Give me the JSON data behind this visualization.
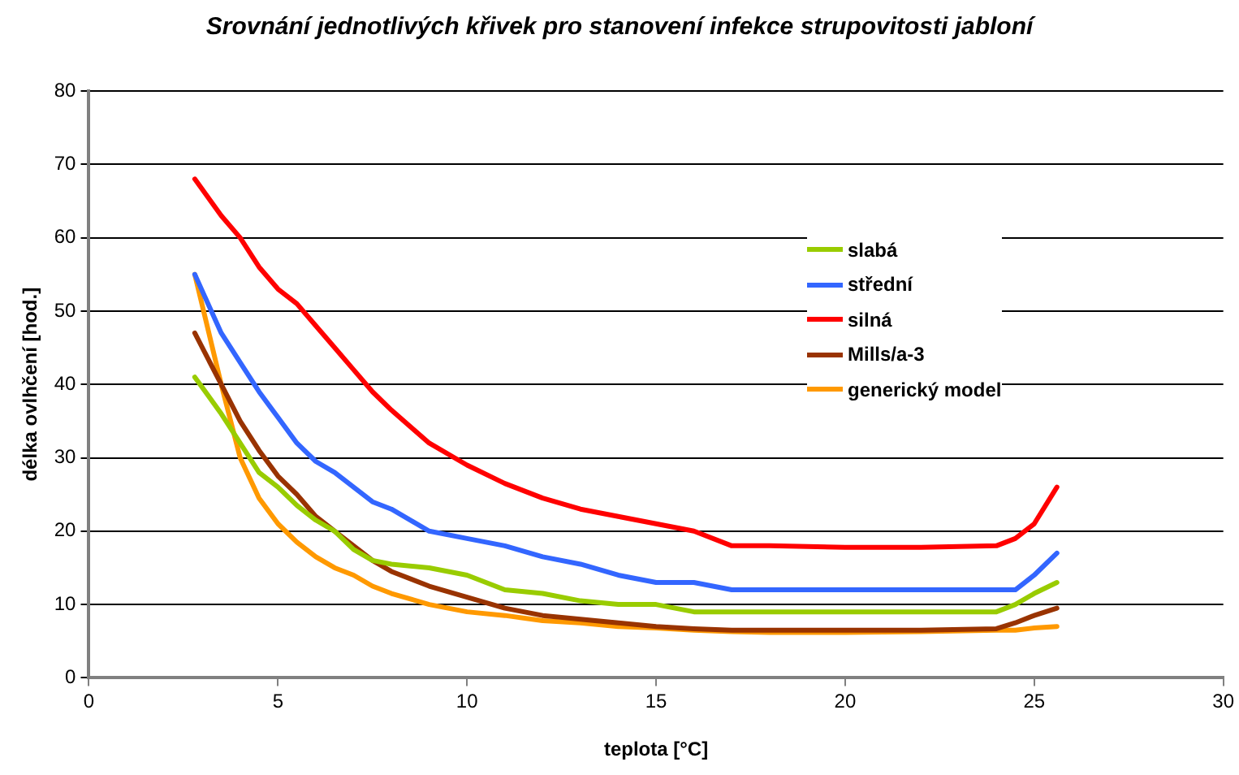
{
  "chart_data": {
    "type": "line",
    "title": "Srovnání jednotlivých křivek pro stanovení infekce strupovitosti jabloní",
    "xlabel": "teplota [°C]",
    "ylabel": "délka ovlhčení [hod.]",
    "x": [
      2.8,
      3.5,
      4,
      4.5,
      5,
      5.5,
      6,
      6.5,
      7,
      7.5,
      8,
      9,
      10,
      11,
      12,
      13,
      14,
      15,
      16,
      17,
      18,
      20,
      22,
      24,
      24.5,
      25,
      25.6
    ],
    "xlim": [
      0,
      30
    ],
    "xticks": [
      0,
      5,
      10,
      15,
      20,
      25,
      30
    ],
    "ylim": [
      0,
      80
    ],
    "yticks": [
      0,
      10,
      20,
      30,
      40,
      50,
      60,
      70,
      80
    ],
    "grid": "y",
    "legend": "right",
    "marker": "none",
    "line_style": "solid",
    "series": [
      {
        "name": "slabá",
        "color": "#99cc00",
        "values": [
          41,
          36,
          32,
          28,
          26,
          23.5,
          21.5,
          20,
          17.5,
          16,
          15.5,
          15,
          14,
          12,
          11.5,
          10.5,
          10,
          10,
          9,
          9,
          9,
          9,
          9,
          9,
          10,
          11.5,
          13
        ]
      },
      {
        "name": "střední",
        "color": "#3366ff",
        "values": [
          55,
          47,
          43,
          39,
          35.5,
          32,
          29.5,
          28,
          26,
          24,
          23,
          20,
          19,
          18,
          16.5,
          15.5,
          14,
          13,
          13,
          12,
          12,
          12,
          12,
          12,
          12,
          14,
          17
        ]
      },
      {
        "name": "silná",
        "color": "#ff0000",
        "values": [
          68,
          63,
          60,
          56,
          53,
          51,
          48,
          45,
          42,
          39,
          36.5,
          32,
          29,
          26.5,
          24.5,
          23,
          22,
          21,
          20,
          18,
          18,
          17.8,
          17.8,
          18,
          19,
          21,
          26
        ]
      },
      {
        "name": "Mills/a-3",
        "color": "#993300",
        "values": [
          47,
          40,
          35,
          31,
          27.5,
          25,
          22,
          20,
          18,
          16,
          14.5,
          12.5,
          11,
          9.5,
          8.5,
          8,
          7.5,
          7,
          6.7,
          6.5,
          6.5,
          6.5,
          6.5,
          6.7,
          7.5,
          8.5,
          9.5
        ]
      },
      {
        "name": "generický model",
        "color": "#ff9900",
        "values": [
          55,
          40,
          30,
          24.5,
          21,
          18.5,
          16.5,
          15,
          14,
          12.5,
          11.5,
          10,
          9,
          8.5,
          7.8,
          7.5,
          7,
          6.8,
          6.5,
          6.3,
          6.2,
          6.2,
          6.3,
          6.5,
          6.5,
          6.8,
          7
        ]
      }
    ]
  }
}
